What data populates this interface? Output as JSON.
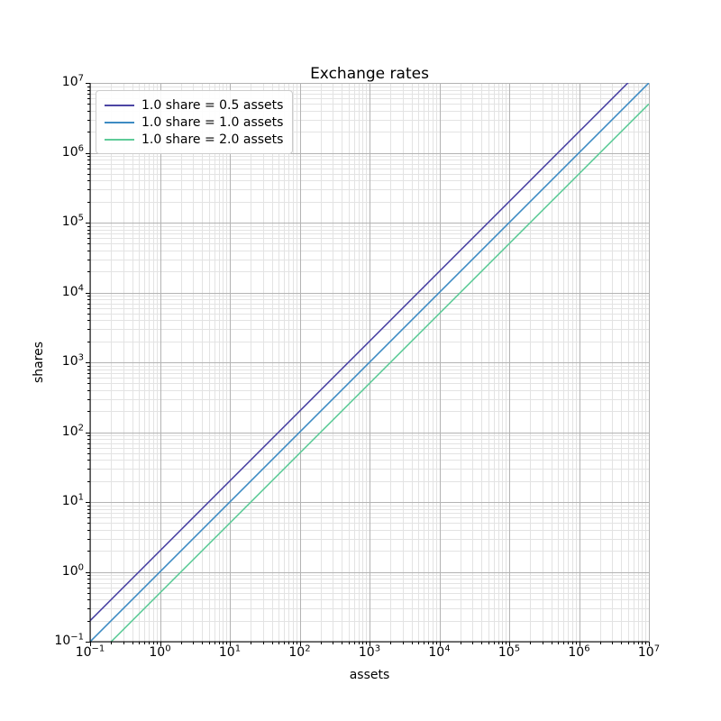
{
  "figure": {
    "title": "Exchange rates",
    "xlabel": "assets",
    "ylabel": "shares"
  },
  "chart_data": {
    "type": "line",
    "title": "Exchange rates",
    "xlabel": "assets",
    "ylabel": "shares",
    "xscale": "log",
    "yscale": "log",
    "xlim": [
      0.1,
      10000000
    ],
    "ylim": [
      0.1,
      10000000
    ],
    "x_tick_exponents": [
      -1,
      0,
      1,
      2,
      3,
      4,
      5,
      6,
      7
    ],
    "y_tick_exponents": [
      -1,
      0,
      1,
      2,
      3,
      4,
      5,
      6,
      7
    ],
    "minor_tick_multiples": [
      2,
      3,
      4,
      5,
      6,
      7,
      8,
      9
    ],
    "grid": "major+minor",
    "legend_position": "upper left",
    "series": [
      {
        "name": "1.0 share = 0.5 assets",
        "assets_per_share": 0.5,
        "color": "#4c45a4",
        "x": [
          0.1,
          10000000
        ],
        "y": [
          0.2,
          20000000
        ]
      },
      {
        "name": "1.0 share = 1.0 assets",
        "assets_per_share": 1.0,
        "color": "#3d8bc3",
        "x": [
          0.1,
          10000000
        ],
        "y": [
          0.1,
          10000000
        ]
      },
      {
        "name": "1.0 share = 2.0 assets",
        "assets_per_share": 2.0,
        "color": "#5ecb98",
        "x": [
          0.1,
          10000000
        ],
        "y": [
          0.05,
          5000000
        ]
      }
    ],
    "colors": {
      "major_grid": "#b3b3b3",
      "minor_grid": "#e3e3e3",
      "spine": "#000000",
      "tick": "#000000",
      "background": "#ffffff"
    }
  }
}
